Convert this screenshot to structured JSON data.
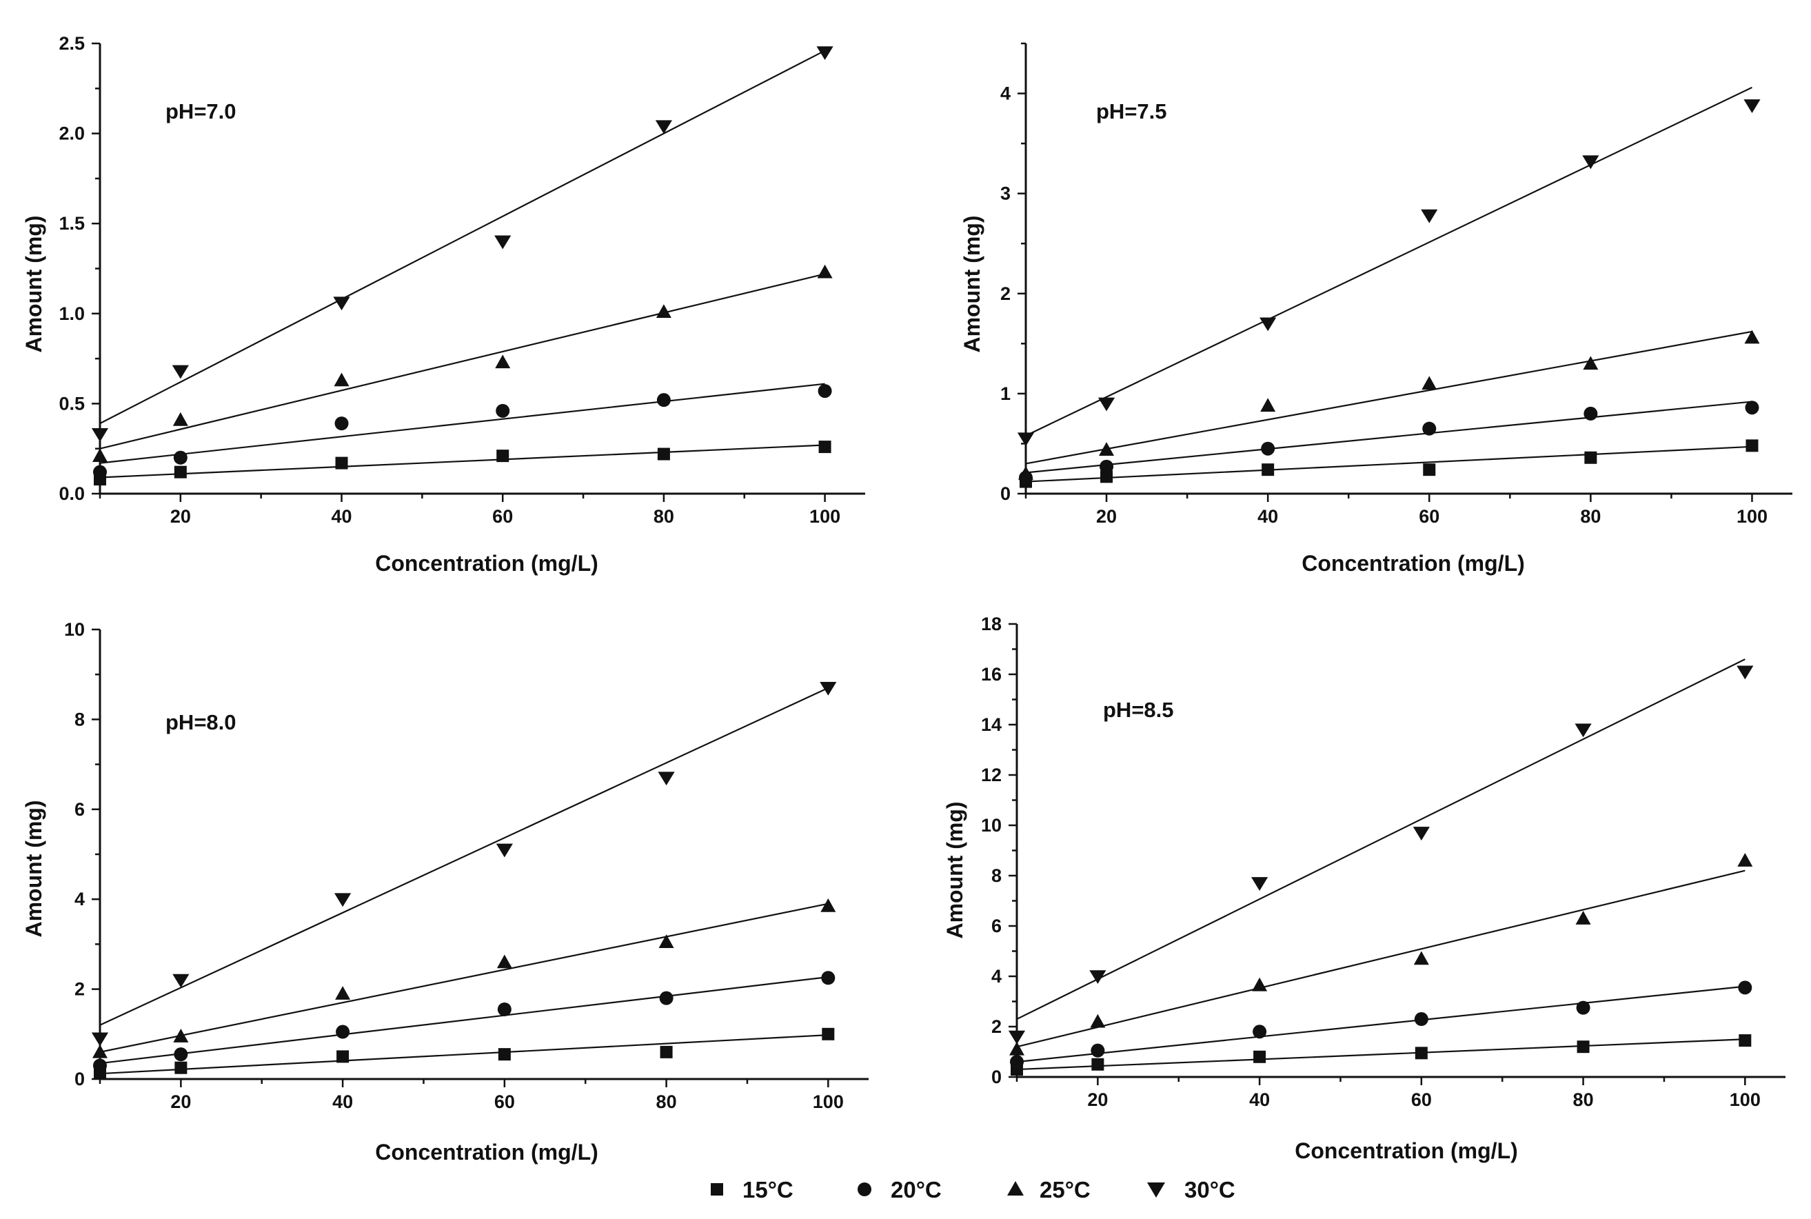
{
  "chart_data": [
    {
      "type": "scatter",
      "panel": "pH=7.0",
      "annotation": "pH=7.0",
      "xlabel": "Concentration (mg/L)",
      "ylabel": "Amount (mg)",
      "xlim": [
        10,
        105
      ],
      "ylim": [
        0,
        2.5
      ],
      "xticks": [
        "20",
        "40",
        "60",
        "80",
        "100"
      ],
      "yticks": [
        "0.0",
        "0.5",
        "1.0",
        "1.5",
        "2.0",
        "2.5"
      ],
      "x": [
        10,
        20,
        40,
        60,
        80,
        100
      ],
      "series": [
        {
          "name": "15°C",
          "values": [
            0.08,
            0.12,
            0.17,
            0.21,
            0.22,
            0.26
          ],
          "fit": [
            0.09,
            0.27
          ]
        },
        {
          "name": "20°C",
          "values": [
            0.12,
            0.2,
            0.39,
            0.46,
            0.52,
            0.57
          ],
          "fit": [
            0.17,
            0.61
          ]
        },
        {
          "name": "25°C",
          "values": [
            0.21,
            0.41,
            0.63,
            0.73,
            1.01,
            1.23
          ],
          "fit": [
            0.25,
            1.22
          ]
        },
        {
          "name": "30°C",
          "values": [
            0.33,
            0.68,
            1.06,
            1.4,
            2.04,
            2.45
          ],
          "fit": [
            0.39,
            2.46
          ]
        }
      ]
    },
    {
      "type": "scatter",
      "panel": "pH=7.5",
      "annotation": "pH=7.5",
      "xlabel": "Concentration (mg/L)",
      "ylabel": "Amount (mg)",
      "xlim": [
        10,
        105
      ],
      "ylim": [
        0,
        4.5
      ],
      "xticks": [
        "20",
        "40",
        "60",
        "80",
        "100"
      ],
      "yticks": [
        "0",
        "1",
        "2",
        "3",
        "4"
      ],
      "x": [
        10,
        20,
        40,
        60,
        80,
        100
      ],
      "series": [
        {
          "name": "15°C",
          "values": [
            0.12,
            0.17,
            0.24,
            0.24,
            0.36,
            0.48
          ],
          "fit": [
            0.12,
            0.47
          ]
        },
        {
          "name": "20°C",
          "values": [
            0.16,
            0.27,
            0.45,
            0.65,
            0.8,
            0.86
          ],
          "fit": [
            0.21,
            0.92
          ]
        },
        {
          "name": "25°C",
          "values": [
            0.2,
            0.44,
            0.88,
            1.1,
            1.3,
            1.56
          ],
          "fit": [
            0.3,
            1.62
          ]
        },
        {
          "name": "30°C",
          "values": [
            0.55,
            0.9,
            1.7,
            2.78,
            3.32,
            3.88
          ],
          "fit": [
            0.58,
            4.06
          ]
        }
      ]
    },
    {
      "type": "scatter",
      "panel": "pH=8.0",
      "annotation": "pH=8.0",
      "xlabel": "Concentration (mg/L)",
      "ylabel": "Amount (mg)",
      "xlim": [
        10,
        105
      ],
      "ylim": [
        0,
        10
      ],
      "xticks": [
        "20",
        "40",
        "60",
        "80",
        "100"
      ],
      "yticks": [
        "0",
        "2",
        "4",
        "6",
        "8",
        "10"
      ],
      "x": [
        10,
        20,
        40,
        60,
        80,
        100
      ],
      "series": [
        {
          "name": "15°C",
          "values": [
            0.15,
            0.25,
            0.5,
            0.55,
            0.6,
            1.0
          ],
          "fit": [
            0.12,
            0.98
          ]
        },
        {
          "name": "20°C",
          "values": [
            0.3,
            0.55,
            1.05,
            1.55,
            1.8,
            2.25
          ],
          "fit": [
            0.35,
            2.27
          ]
        },
        {
          "name": "25°C",
          "values": [
            0.6,
            0.95,
            1.9,
            2.6,
            3.05,
            3.85
          ],
          "fit": [
            0.6,
            3.9
          ]
        },
        {
          "name": "30°C",
          "values": [
            0.9,
            2.2,
            4.0,
            5.1,
            6.7,
            8.7
          ],
          "fit": [
            1.2,
            8.7
          ]
        }
      ]
    },
    {
      "type": "scatter",
      "panel": "pH=8.5",
      "annotation": "pH=8.5",
      "xlabel": "Concentration (mg/L)",
      "ylabel": "Amount (mg)",
      "xlim": [
        10,
        105
      ],
      "ylim": [
        0,
        18
      ],
      "xticks": [
        "20",
        "40",
        "60",
        "80",
        "100"
      ],
      "yticks": [
        "0",
        "2",
        "4",
        "6",
        "8",
        "10",
        "12",
        "14",
        "16",
        "18"
      ],
      "x": [
        10,
        20,
        40,
        60,
        80,
        100
      ],
      "series": [
        {
          "name": "15°C",
          "values": [
            0.3,
            0.5,
            0.8,
            0.95,
            1.2,
            1.45
          ],
          "fit": [
            0.3,
            1.5
          ]
        },
        {
          "name": "20°C",
          "values": [
            0.6,
            1.05,
            1.8,
            2.3,
            2.75,
            3.55
          ],
          "fit": [
            0.6,
            3.6
          ]
        },
        {
          "name": "25°C",
          "values": [
            1.1,
            2.2,
            3.65,
            4.7,
            6.3,
            8.6
          ],
          "fit": [
            1.2,
            8.2
          ]
        },
        {
          "name": "30°C",
          "values": [
            1.6,
            4.0,
            7.7,
            9.7,
            13.8,
            16.1
          ],
          "fit": [
            2.3,
            16.6
          ]
        }
      ]
    }
  ],
  "legend": {
    "placement": "bottom-center",
    "items": [
      {
        "label": "15°C",
        "marker": "square"
      },
      {
        "label": "20°C",
        "marker": "circle"
      },
      {
        "label": "25°C",
        "marker": "triangle-up"
      },
      {
        "label": "30°C",
        "marker": "triangle-down"
      }
    ]
  }
}
